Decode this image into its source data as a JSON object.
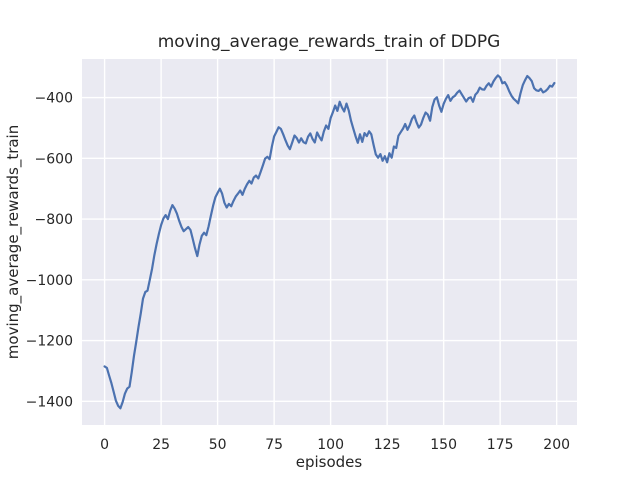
{
  "chart_data": {
    "type": "line",
    "title": "moving_average_rewards_train of DDPG",
    "xlabel": "episodes",
    "ylabel": "moving_average_rewards_train",
    "xlim": [
      -10,
      209
    ],
    "ylim": [
      -1478,
      -273
    ],
    "xticks": [
      0,
      25,
      50,
      75,
      100,
      125,
      150,
      175,
      200
    ],
    "yticks": [
      -400,
      -600,
      -800,
      -1000,
      -1200,
      -1400
    ],
    "grid": true,
    "legend": "none",
    "style": "seaborn-darkgrid",
    "plot_background": "#eaeaf2",
    "grid_color": "#ffffff",
    "line_color": "#4c72b0",
    "text_color": "#262626",
    "series": [
      {
        "name": "moving_average_rewards_train",
        "x_start": 0,
        "x_step": 1,
        "values": [
          -1285,
          -1290,
          -1315,
          -1340,
          -1368,
          -1398,
          -1415,
          -1423,
          -1402,
          -1375,
          -1358,
          -1352,
          -1305,
          -1250,
          -1205,
          -1155,
          -1110,
          -1062,
          -1040,
          -1036,
          -1000,
          -963,
          -920,
          -882,
          -850,
          -820,
          -798,
          -787,
          -800,
          -772,
          -754,
          -766,
          -782,
          -806,
          -826,
          -840,
          -833,
          -826,
          -836,
          -866,
          -896,
          -922,
          -884,
          -855,
          -845,
          -853,
          -824,
          -790,
          -756,
          -728,
          -714,
          -700,
          -716,
          -746,
          -762,
          -750,
          -758,
          -741,
          -726,
          -716,
          -706,
          -720,
          -701,
          -686,
          -674,
          -683,
          -663,
          -657,
          -666,
          -645,
          -624,
          -601,
          -595,
          -603,
          -561,
          -528,
          -513,
          -498,
          -503,
          -521,
          -540,
          -558,
          -570,
          -548,
          -525,
          -533,
          -548,
          -534,
          -547,
          -551,
          -529,
          -518,
          -536,
          -548,
          -515,
          -529,
          -541,
          -512,
          -492,
          -503,
          -468,
          -448,
          -426,
          -444,
          -414,
          -432,
          -446,
          -420,
          -442,
          -476,
          -501,
          -527,
          -549,
          -521,
          -546,
          -517,
          -527,
          -511,
          -521,
          -556,
          -587,
          -598,
          -586,
          -608,
          -593,
          -613,
          -583,
          -598,
          -561,
          -566,
          -526,
          -514,
          -502,
          -487,
          -506,
          -491,
          -470,
          -459,
          -481,
          -499,
          -489,
          -467,
          -449,
          -456,
          -476,
          -431,
          -406,
          -399,
          -426,
          -447,
          -421,
          -404,
          -392,
          -411,
          -399,
          -394,
          -384,
          -377,
          -389,
          -401,
          -413,
          -402,
          -399,
          -414,
          -391,
          -383,
          -367,
          -373,
          -374,
          -361,
          -353,
          -364,
          -347,
          -336,
          -327,
          -334,
          -353,
          -349,
          -361,
          -379,
          -394,
          -404,
          -411,
          -419,
          -386,
          -359,
          -343,
          -329,
          -336,
          -346,
          -369,
          -376,
          -378,
          -371,
          -383,
          -379,
          -372,
          -361,
          -364,
          -352
        ]
      }
    ]
  }
}
